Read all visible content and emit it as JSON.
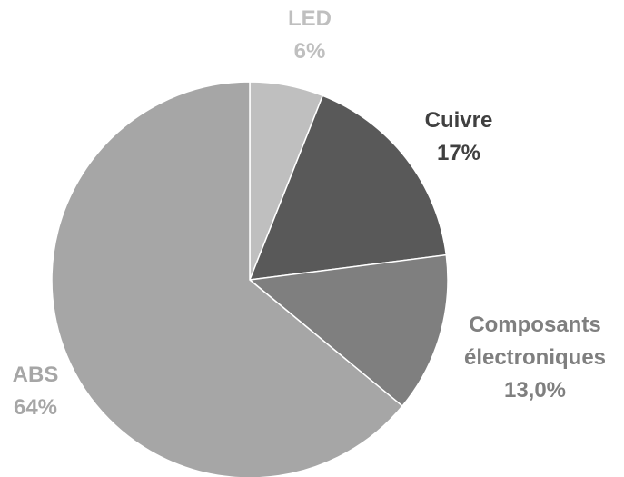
{
  "chart_data": {
    "type": "pie",
    "start_angle_deg": 0,
    "direction": "clockwise",
    "slices": [
      {
        "name": "LED",
        "value": 6,
        "value_label": "6%",
        "color": "#bfbfbf",
        "label_color": "#bfbfbf"
      },
      {
        "name": "Cuivre",
        "value": 17,
        "value_label": "17%",
        "color": "#595959",
        "label_color": "#404040"
      },
      {
        "name": "Composants électroniques",
        "name_lines": [
          "Composants",
          "électroniques"
        ],
        "value": 13.0,
        "value_label": "13,0%",
        "color": "#7f7f7f",
        "label_color": "#7f7f7f"
      },
      {
        "name": "ABS",
        "value": 64,
        "value_label": "64%",
        "color": "#a6a6a6",
        "label_color": "#a6a6a6"
      }
    ]
  }
}
